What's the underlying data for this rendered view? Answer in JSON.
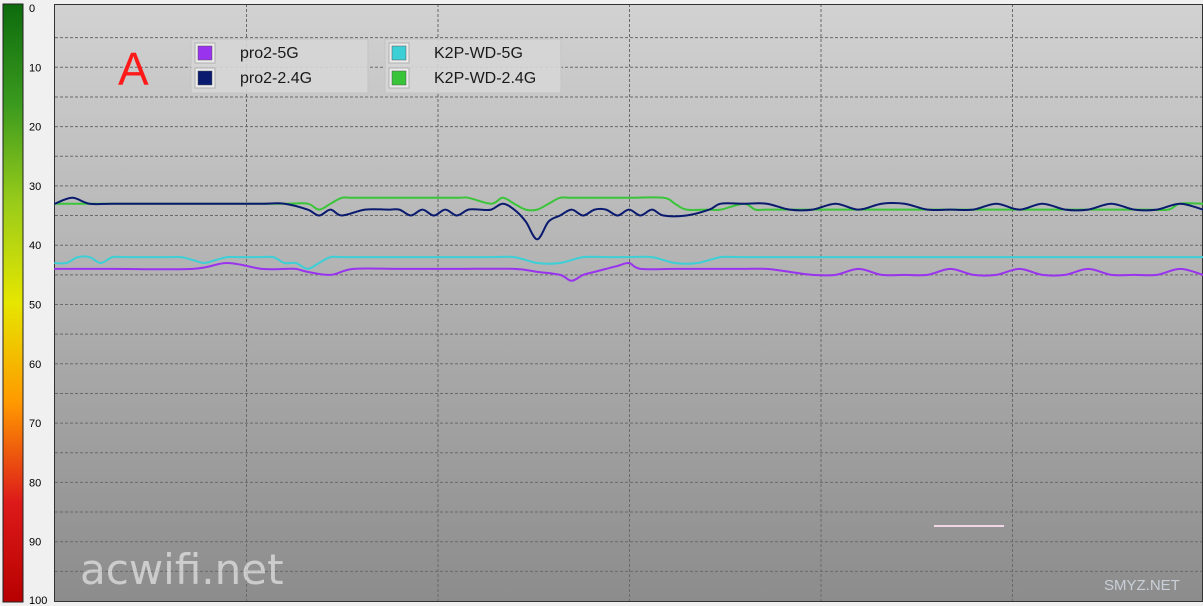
{
  "panel_label": "A",
  "watermarks": {
    "main": "acwifi.net",
    "corner": "SMYZ.NET"
  },
  "colors": {
    "plot_top": "#d2d2d2",
    "plot_bottom": "#8c8c8c",
    "grid": "#6a6a6a",
    "scale_gradient": [
      "#0d6b0d",
      "#3a9a1e",
      "#9acc1a",
      "#e6e600",
      "#ff9900",
      "#dd1a1a",
      "#b80000"
    ]
  },
  "chart_data": {
    "type": "line",
    "ylim": [
      0,
      100
    ],
    "y_inverted": true,
    "xlim": [
      0,
      100
    ],
    "yticks": [
      0,
      10,
      20,
      30,
      40,
      50,
      60,
      70,
      80,
      90,
      100
    ],
    "grid": true,
    "legend": {
      "placement": "top-left"
    },
    "series": [
      {
        "name": "pro2-5G",
        "color": "#9933ee",
        "points": [
          [
            0,
            44
          ],
          [
            5,
            44
          ],
          [
            12,
            44
          ],
          [
            15,
            43
          ],
          [
            18,
            44
          ],
          [
            20,
            44
          ],
          [
            21,
            44
          ],
          [
            22,
            44.5
          ],
          [
            24,
            45
          ],
          [
            26,
            44
          ],
          [
            30,
            44
          ],
          [
            35,
            44
          ],
          [
            40,
            44
          ],
          [
            42,
            44.5
          ],
          [
            44,
            45
          ],
          [
            45,
            46
          ],
          [
            46,
            45
          ],
          [
            47,
            44.5
          ],
          [
            48,
            44
          ],
          [
            49,
            43.5
          ],
          [
            50,
            43
          ],
          [
            51,
            44
          ],
          [
            54,
            44
          ],
          [
            58,
            44
          ],
          [
            60,
            44
          ],
          [
            62,
            44
          ],
          [
            64,
            44.5
          ],
          [
            66,
            45
          ],
          [
            68,
            45
          ],
          [
            70,
            44
          ],
          [
            72,
            45
          ],
          [
            74,
            45
          ],
          [
            76,
            45
          ],
          [
            78,
            44
          ],
          [
            80,
            45
          ],
          [
            82,
            45
          ],
          [
            84,
            44
          ],
          [
            86,
            45
          ],
          [
            88,
            45
          ],
          [
            90,
            44
          ],
          [
            92,
            45
          ],
          [
            94,
            45
          ],
          [
            96,
            45
          ],
          [
            98,
            44
          ],
          [
            100,
            45
          ]
        ]
      },
      {
        "name": "pro2-2.4G",
        "color": "#0a1a6e",
        "points": [
          [
            0,
            33
          ],
          [
            1.5,
            32
          ],
          [
            3,
            33
          ],
          [
            5,
            33
          ],
          [
            10,
            33
          ],
          [
            15,
            33
          ],
          [
            18,
            33
          ],
          [
            20,
            33
          ],
          [
            22,
            34
          ],
          [
            23,
            35
          ],
          [
            24,
            34
          ],
          [
            25,
            35
          ],
          [
            27,
            34
          ],
          [
            29,
            34
          ],
          [
            30,
            34
          ],
          [
            31,
            35
          ],
          [
            32,
            34
          ],
          [
            33,
            35
          ],
          [
            34,
            34
          ],
          [
            35,
            35
          ],
          [
            36,
            34
          ],
          [
            37,
            34
          ],
          [
            38,
            34
          ],
          [
            39,
            33
          ],
          [
            40,
            34
          ],
          [
            41,
            36
          ],
          [
            42,
            39
          ],
          [
            43,
            36
          ],
          [
            44,
            35
          ],
          [
            45,
            34
          ],
          [
            46,
            35
          ],
          [
            47,
            34
          ],
          [
            48,
            34
          ],
          [
            49,
            35
          ],
          [
            50,
            34
          ],
          [
            51,
            35
          ],
          [
            52,
            34
          ],
          [
            53,
            35
          ],
          [
            55,
            35
          ],
          [
            57,
            34
          ],
          [
            58,
            33
          ],
          [
            60,
            33
          ],
          [
            62,
            33
          ],
          [
            64,
            34
          ],
          [
            66,
            34
          ],
          [
            68,
            33
          ],
          [
            70,
            34
          ],
          [
            72,
            33
          ],
          [
            74,
            33
          ],
          [
            76,
            34
          ],
          [
            78,
            34
          ],
          [
            80,
            34
          ],
          [
            82,
            33
          ],
          [
            84,
            34
          ],
          [
            86,
            33
          ],
          [
            88,
            34
          ],
          [
            90,
            34
          ],
          [
            92,
            33
          ],
          [
            94,
            34
          ],
          [
            96,
            34
          ],
          [
            98,
            33
          ],
          [
            100,
            34
          ]
        ]
      },
      {
        "name": "K2P-WD-5G",
        "color": "#3ccfd6",
        "points": [
          [
            0,
            43
          ],
          [
            1,
            43
          ],
          [
            2,
            42
          ],
          [
            3,
            42
          ],
          [
            4,
            43
          ],
          [
            5,
            42
          ],
          [
            6,
            42
          ],
          [
            7,
            42
          ],
          [
            8,
            42
          ],
          [
            9,
            42
          ],
          [
            10,
            42
          ],
          [
            11,
            42
          ],
          [
            12,
            42.5
          ],
          [
            13,
            43
          ],
          [
            14,
            42.5
          ],
          [
            15,
            42
          ],
          [
            16,
            42
          ],
          [
            17,
            42
          ],
          [
            18,
            42
          ],
          [
            19,
            42
          ],
          [
            20,
            43
          ],
          [
            21,
            43
          ],
          [
            22,
            44
          ],
          [
            23,
            43
          ],
          [
            24,
            42
          ],
          [
            25,
            42
          ],
          [
            28,
            42
          ],
          [
            30,
            42
          ],
          [
            35,
            42
          ],
          [
            38,
            42
          ],
          [
            40,
            42
          ],
          [
            42,
            43
          ],
          [
            44,
            43
          ],
          [
            46,
            42
          ],
          [
            48,
            42
          ],
          [
            49,
            42
          ],
          [
            50,
            42
          ],
          [
            52,
            42
          ],
          [
            54,
            43
          ],
          [
            56,
            43
          ],
          [
            58,
            42
          ],
          [
            60,
            42
          ],
          [
            70,
            42
          ],
          [
            80,
            42
          ],
          [
            90,
            42
          ],
          [
            100,
            42
          ]
        ]
      },
      {
        "name": "K2P-WD-2.4G",
        "color": "#39c439",
        "points": [
          [
            0,
            33
          ],
          [
            5,
            33
          ],
          [
            10,
            33
          ],
          [
            15,
            33
          ],
          [
            20,
            33
          ],
          [
            22,
            33
          ],
          [
            23,
            34
          ],
          [
            24,
            33
          ],
          [
            25,
            32
          ],
          [
            26,
            32
          ],
          [
            30,
            32
          ],
          [
            35,
            32
          ],
          [
            36,
            32
          ],
          [
            38,
            33
          ],
          [
            39,
            32
          ],
          [
            40,
            33
          ],
          [
            41,
            34
          ],
          [
            42,
            34
          ],
          [
            43,
            33
          ],
          [
            44,
            32
          ],
          [
            45,
            32
          ],
          [
            50,
            32
          ],
          [
            53,
            32
          ],
          [
            54,
            33
          ],
          [
            55,
            34
          ],
          [
            57,
            34
          ],
          [
            58,
            34
          ],
          [
            60,
            33
          ],
          [
            61,
            34
          ],
          [
            62,
            34
          ],
          [
            65,
            34
          ],
          [
            68,
            34
          ],
          [
            70,
            34
          ],
          [
            75,
            34
          ],
          [
            80,
            34
          ],
          [
            85,
            34
          ],
          [
            90,
            34
          ],
          [
            92,
            34
          ],
          [
            95,
            34
          ],
          [
            97,
            34
          ],
          [
            98,
            33
          ],
          [
            100,
            33
          ]
        ]
      }
    ]
  }
}
